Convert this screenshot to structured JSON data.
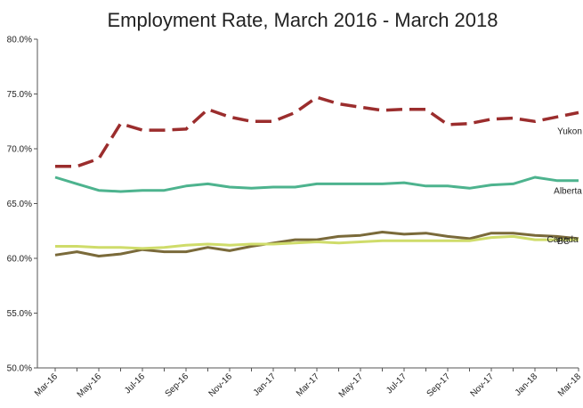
{
  "chart_data": {
    "type": "line",
    "title": "Employment Rate, March 2016 - March 2018",
    "xlabel": "",
    "ylabel": "",
    "ylim": [
      50,
      80
    ],
    "yticks": [
      "50.0%",
      "55.0%",
      "60.0%",
      "65.0%",
      "70.0%",
      "75.0%",
      "80.0%"
    ],
    "x": [
      "Mar-16",
      "Apr-16",
      "May-16",
      "Jun-16",
      "Jul-16",
      "Aug-16",
      "Sep-16",
      "Oct-16",
      "Nov-16",
      "Dec-16",
      "Jan-17",
      "Feb-17",
      "Mar-17",
      "Apr-17",
      "May-17",
      "Jun-17",
      "Jul-17",
      "Aug-17",
      "Sep-17",
      "Oct-17",
      "Nov-17",
      "Dec-17",
      "Jan-18",
      "Feb-18",
      "Mar-18"
    ],
    "xtick_labels": [
      "Mar-16",
      "",
      "May-16",
      "",
      "Jul-16",
      "",
      "Sep-16",
      "",
      "Nov-16",
      "",
      "Jan-17",
      "",
      "Mar-17",
      "",
      "May-17",
      "",
      "Jul-17",
      "",
      "Sep-17",
      "",
      "Nov-17",
      "",
      "Jan-18",
      "",
      "Mar-18"
    ],
    "grid": false,
    "series": [
      {
        "name": "Yukon",
        "color": "#9b2d2d",
        "dashed": true,
        "values": [
          68.4,
          68.4,
          69.1,
          72.3,
          71.7,
          71.7,
          71.8,
          73.6,
          72.9,
          72.5,
          72.5,
          73.3,
          74.7,
          74.1,
          73.8,
          73.5,
          73.6,
          73.6,
          72.2,
          72.3,
          72.7,
          72.8,
          72.5,
          72.9,
          73.3
        ]
      },
      {
        "name": "Alberta",
        "color": "#4db38e",
        "dashed": false,
        "values": [
          67.4,
          66.8,
          66.2,
          66.1,
          66.2,
          66.2,
          66.6,
          66.8,
          66.5,
          66.4,
          66.5,
          66.5,
          66.8,
          66.8,
          66.8,
          66.8,
          66.9,
          66.6,
          66.6,
          66.4,
          66.7,
          66.8,
          67.4,
          67.1,
          67.1
        ]
      },
      {
        "name": "BC",
        "color": "#7a6a3a",
        "dashed": false,
        "values": [
          60.3,
          60.6,
          60.2,
          60.4,
          60.8,
          60.6,
          60.6,
          61.0,
          60.7,
          61.1,
          61.4,
          61.7,
          61.7,
          62.0,
          62.1,
          62.4,
          62.2,
          62.3,
          62.0,
          61.8,
          62.3,
          62.3,
          62.1,
          62.0,
          61.8
        ]
      },
      {
        "name": "Canada",
        "color": "#cfdc6a",
        "dashed": false,
        "values": [
          61.1,
          61.1,
          61.0,
          61.0,
          60.9,
          61.0,
          61.2,
          61.3,
          61.2,
          61.3,
          61.3,
          61.4,
          61.5,
          61.4,
          61.5,
          61.6,
          61.6,
          61.6,
          61.6,
          61.6,
          61.9,
          62.0,
          61.7,
          61.7,
          61.7
        ]
      }
    ]
  }
}
